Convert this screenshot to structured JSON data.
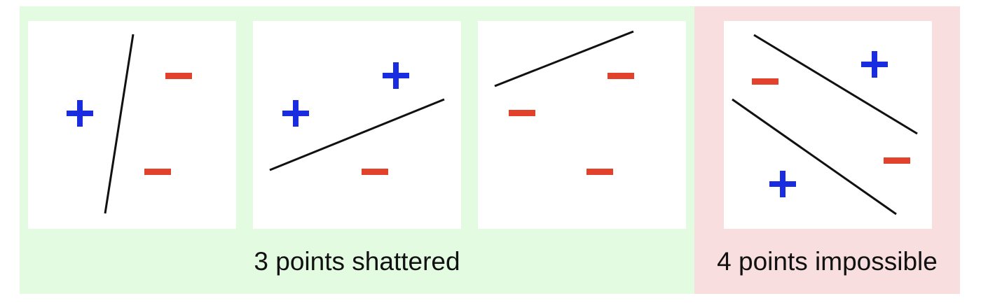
{
  "colors": {
    "shattered_bg": "#e3fbe0",
    "impossible_bg": "#f8dede",
    "positive": "#1a2ce0",
    "negative": "#e2412b",
    "line": "#111111"
  },
  "captions": {
    "shattered": "3 points shattered",
    "impossible": "4 points impossible"
  },
  "icons": {
    "positive": "plus-sign",
    "negative": "minus-sign"
  }
}
